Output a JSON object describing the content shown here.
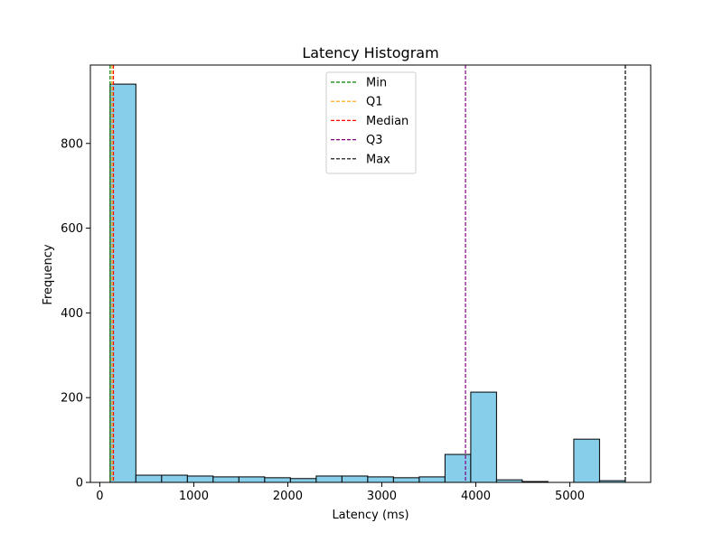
{
  "chart_data": {
    "type": "bar",
    "title": "Latency Histogram",
    "xlabel": "Latency (ms)",
    "ylabel": "Frequency",
    "xlim": [
      -100,
      5860
    ],
    "ylim": [
      0,
      985
    ],
    "x_ticks": [
      0,
      1000,
      2000,
      3000,
      4000,
      5000
    ],
    "y_ticks": [
      0,
      200,
      400,
      600,
      800
    ],
    "bins": [
      {
        "start": 110,
        "end": 384,
        "count": 940
      },
      {
        "start": 384,
        "end": 658,
        "count": 17
      },
      {
        "start": 658,
        "end": 932,
        "count": 17
      },
      {
        "start": 932,
        "end": 1206,
        "count": 15
      },
      {
        "start": 1206,
        "end": 1480,
        "count": 13
      },
      {
        "start": 1480,
        "end": 1754,
        "count": 13
      },
      {
        "start": 1754,
        "end": 2028,
        "count": 11
      },
      {
        "start": 2028,
        "end": 2302,
        "count": 9
      },
      {
        "start": 2302,
        "end": 2576,
        "count": 15
      },
      {
        "start": 2576,
        "end": 2850,
        "count": 15
      },
      {
        "start": 2850,
        "end": 3124,
        "count": 13
      },
      {
        "start": 3124,
        "end": 3398,
        "count": 11
      },
      {
        "start": 3398,
        "end": 3672,
        "count": 13
      },
      {
        "start": 3672,
        "end": 3946,
        "count": 66
      },
      {
        "start": 3946,
        "end": 4220,
        "count": 213
      },
      {
        "start": 4220,
        "end": 4494,
        "count": 6
      },
      {
        "start": 4494,
        "end": 4768,
        "count": 2
      },
      {
        "start": 4768,
        "end": 5042,
        "count": 0
      },
      {
        "start": 5042,
        "end": 5316,
        "count": 102
      },
      {
        "start": 5316,
        "end": 5590,
        "count": 4
      }
    ],
    "bar_color": "#87ceeb",
    "bar_edge_color": "#000000",
    "reference_lines": [
      {
        "name": "Min",
        "x": 110,
        "color": "#008000"
      },
      {
        "name": "Q1",
        "x": 130,
        "color": "#ffa500"
      },
      {
        "name": "Median",
        "x": 145,
        "color": "#ff0000"
      },
      {
        "name": "Q3",
        "x": 3890,
        "color": "#800080"
      },
      {
        "name": "Max",
        "x": 5590,
        "color": "#000000"
      }
    ],
    "legend_position": "upper-center",
    "grid": false
  }
}
